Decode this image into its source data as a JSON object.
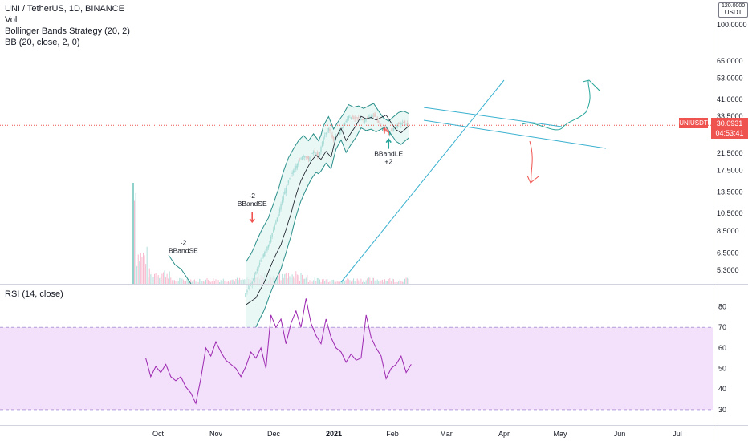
{
  "header": {
    "symbol_line": "UNI / TetherUS, 1D, BINANCE",
    "vol_label": "Vol",
    "strategy_label": "Bollinger Bands Strategy (20, 2)",
    "bb_label": "BB (20, close, 2, 0)",
    "rsi_label": "RSI (14, close)"
  },
  "price_axis": {
    "currency": "USDT",
    "top_tick": "120.0000",
    "ticks": [
      {
        "label": "100.0000",
        "value": 100
      },
      {
        "label": "65.0000",
        "value": 65
      },
      {
        "label": "53.0000",
        "value": 53
      },
      {
        "label": "41.0000",
        "value": 41
      },
      {
        "label": "33.5000",
        "value": 33.5
      },
      {
        "label": "21.5000",
        "value": 21.5
      },
      {
        "label": "17.5000",
        "value": 17.5
      },
      {
        "label": "13.5000",
        "value": 13.5
      },
      {
        "label": "10.5000",
        "value": 10.5
      },
      {
        "label": "8.5000",
        "value": 8.5
      },
      {
        "label": "6.5000",
        "value": 6.5
      },
      {
        "label": "5.3000",
        "value": 5.3
      }
    ]
  },
  "rsi_axis": {
    "ticks": [
      {
        "label": "80",
        "value": 80
      },
      {
        "label": "70",
        "value": 70
      },
      {
        "label": "60",
        "value": 60
      },
      {
        "label": "50",
        "value": 50
      },
      {
        "label": "40",
        "value": 40
      },
      {
        "label": "30",
        "value": 30
      }
    ]
  },
  "time_axis": {
    "ticks": [
      {
        "label": "Oct",
        "bold": false
      },
      {
        "label": "Nov",
        "bold": false
      },
      {
        "label": "Dec",
        "bold": false
      },
      {
        "label": "2021",
        "bold": true
      },
      {
        "label": "Feb",
        "bold": false
      },
      {
        "label": "Mar",
        "bold": false
      },
      {
        "label": "Apr",
        "bold": false
      },
      {
        "label": "May",
        "bold": false
      },
      {
        "label": "Jun",
        "bold": false
      },
      {
        "label": "Jul",
        "bold": false
      }
    ]
  },
  "current_price": {
    "ticker": "UNIUSDT",
    "price": "30.0931",
    "countdown": "04:53:41",
    "value": 30.0931
  },
  "signals": [
    {
      "lines": [
        "-2",
        "BBandSE"
      ],
      "month": "Nov",
      "day_offset": 40,
      "price": 5.8,
      "type": "short",
      "arrow": false
    },
    {
      "lines": [
        "-2",
        "BBandSE"
      ],
      "month": "2021",
      "day_offset": 95,
      "price": 10.2,
      "type": "short",
      "arrow": true
    },
    {
      "lines": [
        "BBandLE",
        "+2"
      ],
      "month": "Mar",
      "day_offset": 204,
      "price": 24.5,
      "type": "long",
      "arrow": true
    }
  ],
  "colors": {
    "up": "#26a69a",
    "down": "#ef5350",
    "bb_band": "#2a8f8a",
    "bb_fill": "#e0f3f1",
    "drawing": "#3ab1d0",
    "projection": "#26a69a",
    "rsi_line": "#9c27b0",
    "rsi_band": "#f3e0fb",
    "price_line": "#ef5350"
  },
  "chart_data": {
    "type": "candlestick",
    "note_price": "close approximations, USDT, daily candles from mid-Sep 2020 to mid-Apr 2021",
    "close_series": [
      {
        "day": 0,
        "close": 5.5
      },
      {
        "day": 3,
        "close": 7.2
      },
      {
        "day": 6,
        "close": 6.4
      },
      {
        "day": 10,
        "close": 5.8
      },
      {
        "day": 16,
        "close": 5.1
      },
      {
        "day": 24,
        "close": 4.7
      },
      {
        "day": 32,
        "close": 4.2
      },
      {
        "day": 40,
        "close": 3.6
      },
      {
        "day": 48,
        "close": 3.4
      },
      {
        "day": 56,
        "close": 3.2
      },
      {
        "day": 64,
        "close": 3.4
      },
      {
        "day": 72,
        "close": 3.6
      },
      {
        "day": 80,
        "close": 3.5
      },
      {
        "day": 88,
        "close": 3.8
      },
      {
        "day": 95,
        "close": 4.6
      },
      {
        "day": 100,
        "close": 5.6
      },
      {
        "day": 104,
        "close": 6.4
      },
      {
        "day": 108,
        "close": 7.2
      },
      {
        "day": 112,
        "close": 8.6
      },
      {
        "day": 116,
        "close": 10.4
      },
      {
        "day": 120,
        "close": 13.0
      },
      {
        "day": 124,
        "close": 15.5
      },
      {
        "day": 128,
        "close": 17.5
      },
      {
        "day": 132,
        "close": 19.5
      },
      {
        "day": 136,
        "close": 21.0
      },
      {
        "day": 140,
        "close": 20.0
      },
      {
        "day": 144,
        "close": 22.0
      },
      {
        "day": 148,
        "close": 20.5
      },
      {
        "day": 152,
        "close": 26.0
      },
      {
        "day": 156,
        "close": 29.0
      },
      {
        "day": 160,
        "close": 25.0
      },
      {
        "day": 164,
        "close": 27.5
      },
      {
        "day": 168,
        "close": 30.0
      },
      {
        "day": 172,
        "close": 33.5
      },
      {
        "day": 176,
        "close": 32.5
      },
      {
        "day": 180,
        "close": 33.0
      },
      {
        "day": 184,
        "close": 32.0
      },
      {
        "day": 188,
        "close": 33.0
      },
      {
        "day": 192,
        "close": 34.0
      },
      {
        "day": 196,
        "close": 31.0
      },
      {
        "day": 200,
        "close": 28.5
      },
      {
        "day": 204,
        "close": 27.5
      },
      {
        "day": 208,
        "close": 29.0
      },
      {
        "day": 212,
        "close": 30.5
      },
      {
        "day": 216,
        "close": 31.0
      },
      {
        "day": 220,
        "close": 30.1
      }
    ],
    "rsi_series": [
      {
        "day": 10,
        "rsi": 55
      },
      {
        "day": 14,
        "rsi": 46
      },
      {
        "day": 18,
        "rsi": 51
      },
      {
        "day": 22,
        "rsi": 48
      },
      {
        "day": 26,
        "rsi": 52
      },
      {
        "day": 30,
        "rsi": 46
      },
      {
        "day": 34,
        "rsi": 44
      },
      {
        "day": 38,
        "rsi": 46
      },
      {
        "day": 42,
        "rsi": 41
      },
      {
        "day": 46,
        "rsi": 38
      },
      {
        "day": 50,
        "rsi": 33
      },
      {
        "day": 54,
        "rsi": 45
      },
      {
        "day": 58,
        "rsi": 60
      },
      {
        "day": 62,
        "rsi": 56
      },
      {
        "day": 66,
        "rsi": 63
      },
      {
        "day": 70,
        "rsi": 58
      },
      {
        "day": 74,
        "rsi": 54
      },
      {
        "day": 78,
        "rsi": 52
      },
      {
        "day": 82,
        "rsi": 50
      },
      {
        "day": 86,
        "rsi": 46
      },
      {
        "day": 90,
        "rsi": 51
      },
      {
        "day": 94,
        "rsi": 58
      },
      {
        "day": 98,
        "rsi": 55
      },
      {
        "day": 102,
        "rsi": 60
      },
      {
        "day": 106,
        "rsi": 50
      },
      {
        "day": 110,
        "rsi": 76
      },
      {
        "day": 114,
        "rsi": 70
      },
      {
        "day": 118,
        "rsi": 74
      },
      {
        "day": 122,
        "rsi": 62
      },
      {
        "day": 126,
        "rsi": 72
      },
      {
        "day": 130,
        "rsi": 78
      },
      {
        "day": 134,
        "rsi": 70
      },
      {
        "day": 138,
        "rsi": 84
      },
      {
        "day": 142,
        "rsi": 72
      },
      {
        "day": 146,
        "rsi": 66
      },
      {
        "day": 150,
        "rsi": 62
      },
      {
        "day": 154,
        "rsi": 74
      },
      {
        "day": 158,
        "rsi": 65
      },
      {
        "day": 162,
        "rsi": 60
      },
      {
        "day": 166,
        "rsi": 58
      },
      {
        "day": 170,
        "rsi": 53
      },
      {
        "day": 174,
        "rsi": 57
      },
      {
        "day": 178,
        "rsi": 54
      },
      {
        "day": 182,
        "rsi": 55
      },
      {
        "day": 186,
        "rsi": 76
      },
      {
        "day": 190,
        "rsi": 65
      },
      {
        "day": 194,
        "rsi": 60
      },
      {
        "day": 198,
        "rsi": 56
      },
      {
        "day": 202,
        "rsi": 45
      },
      {
        "day": 206,
        "rsi": 50
      },
      {
        "day": 210,
        "rsi": 52
      },
      {
        "day": 214,
        "rsi": 56
      },
      {
        "day": 218,
        "rsi": 48
      },
      {
        "day": 222,
        "rsi": 52
      }
    ],
    "ylim_price": [
      4.5,
      125
    ],
    "ylim_rsi": [
      28,
      88
    ],
    "rsi_band": [
      30,
      70
    ],
    "log_scale": true,
    "grid": false
  }
}
